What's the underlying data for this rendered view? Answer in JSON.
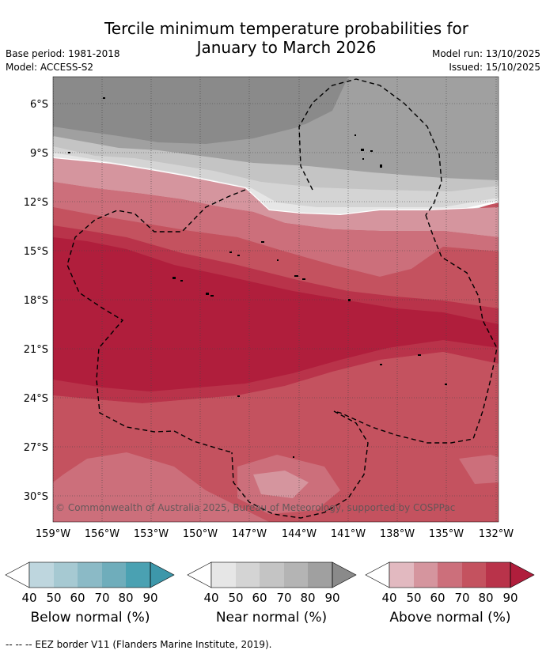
{
  "title_line1": "Tercile minimum temperature probabilities for",
  "title_line2": "January to March 2026",
  "base_period": "Base period: 1981-2018",
  "model": "Model: ACCESS-S2",
  "model_run": "Model run: 13/10/2025",
  "issued": "Issued: 15/10/2025",
  "copyright": "© Commonwealth of Australia 2025, Bureau of Meteorology, supported by COSPPac",
  "lon_labels": [
    "159°W",
    "156°W",
    "153°W",
    "150°W",
    "147°W",
    "144°W",
    "141°W",
    "138°W",
    "135°W",
    "132°W"
  ],
  "lat_labels": [
    "6°S",
    "9°S",
    "12°S",
    "15°S",
    "18°S",
    "21°S",
    "24°S",
    "27°S",
    "30°S"
  ],
  "colorbars": [
    {
      "label": "Below normal (%)",
      "ticks": [
        "40",
        "50",
        "60",
        "70",
        "80",
        "90"
      ],
      "colors": [
        "#bed6de",
        "#a6c9d2",
        "#8bbac6",
        "#6fadbb",
        "#4aa1b2",
        "#3d97aa"
      ]
    },
    {
      "label": "Near normal (%)",
      "ticks": [
        "40",
        "50",
        "60",
        "70",
        "80",
        "90"
      ],
      "colors": [
        "#e6e6e6",
        "#d4d4d4",
        "#c4c4c4",
        "#b4b4b4",
        "#a0a0a0",
        "#8a8a8a"
      ]
    },
    {
      "label": "Above normal (%)",
      "ticks": [
        "40",
        "50",
        "60",
        "70",
        "80",
        "90"
      ],
      "colors": [
        "#e2b9c0",
        "#d5959e",
        "#cc6f7b",
        "#c4525f",
        "#b9334a",
        "#b01e3c"
      ]
    }
  ],
  "footnote": "--  --  -- EEZ border V11 (Flanders Marine Institute, 2019)."
}
